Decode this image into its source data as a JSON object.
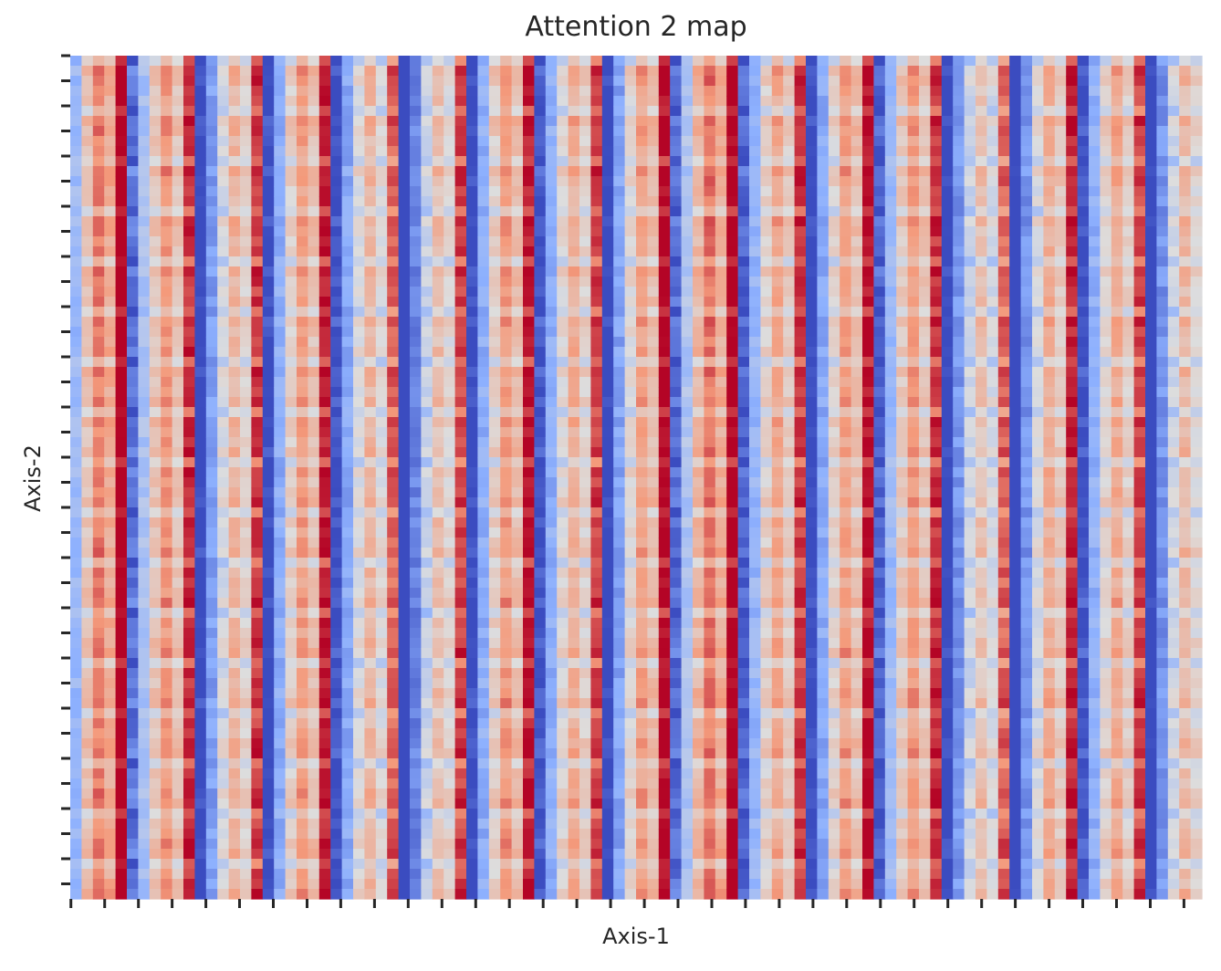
{
  "chart_data": {
    "type": "heatmap",
    "title": "Attention 2 map",
    "xlabel": "Axis-1",
    "ylabel": "Axis-2",
    "colormap": "coolwarm",
    "colorbar": false,
    "x_tick_labels_shown": false,
    "y_tick_labels_shown": false,
    "x_tick_count": 34,
    "y_tick_count": 34,
    "n_cols": 100,
    "n_rows": 84,
    "block_period_cols": 6,
    "block_period_rows": 5,
    "block_pattern": [
      0.12,
      0.55,
      0.72,
      0.6,
      0.96,
      0.02
    ],
    "notes_visible": "vertical stripe pattern: columns alternate light blue, salmon, dark red and dark blue"
  },
  "colors": {
    "low": "#3b4cc0",
    "mid": "#dddddd",
    "high": "#b40426",
    "axis": "#262626"
  }
}
